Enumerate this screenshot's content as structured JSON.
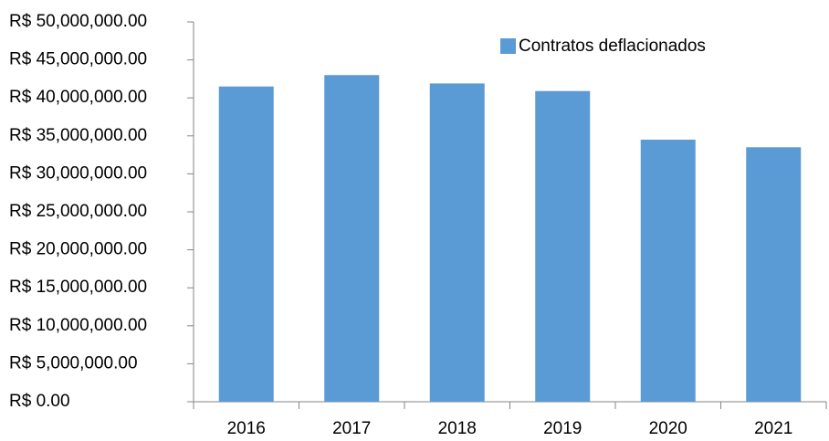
{
  "chart_data": {
    "type": "bar",
    "categories": [
      "2016",
      "2017",
      "2018",
      "2019",
      "2020",
      "2021"
    ],
    "series": [
      {
        "name": "Contratos deflacionados",
        "color": "#5b9bd5",
        "values": [
          41500000,
          43000000,
          41900000,
          40900000,
          34500000,
          33500000
        ]
      }
    ],
    "ylim": [
      0,
      50000000
    ],
    "yticks": [
      {
        "value": 0,
        "label": "R$ 0.00"
      },
      {
        "value": 5000000,
        "label": "R$ 5,000,000.00"
      },
      {
        "value": 10000000,
        "label": "R$ 10,000,000.00"
      },
      {
        "value": 15000000,
        "label": "R$ 15,000,000.00"
      },
      {
        "value": 20000000,
        "label": "R$ 20,000,000.00"
      },
      {
        "value": 25000000,
        "label": "R$ 25,000,000.00"
      },
      {
        "value": 30000000,
        "label": "R$ 30,000,000.00"
      },
      {
        "value": 35000000,
        "label": "R$ 35,000,000.00"
      },
      {
        "value": 40000000,
        "label": "R$ 40,000,000.00"
      },
      {
        "value": 45000000,
        "label": "R$ 45,000,000.00"
      },
      {
        "value": 50000000,
        "label": "R$ 50,000,000.00"
      }
    ],
    "grid": false,
    "legend": "top-right"
  }
}
